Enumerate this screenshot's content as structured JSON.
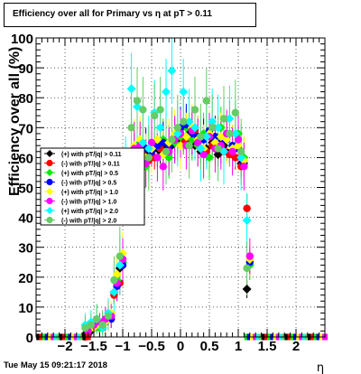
{
  "page": {
    "timestamp": "Tue May 15 09:21:17 2018"
  },
  "chart_data": {
    "type": "scatter",
    "title": "Efficiency over all for Primary vs   η at pT > 0.11",
    "xlabel": "η",
    "ylabel": "Efficiency over all (%)",
    "xlim": [
      -2.5,
      2.5
    ],
    "ylim": [
      0,
      100
    ],
    "x_ticks": [
      -2,
      -1.5,
      -1,
      -0.5,
      0,
      0.5,
      1,
      1.5,
      2
    ],
    "x_tick_labels": [
      "−2",
      "−1.5",
      "−1",
      "−0.5",
      "0",
      "0.5",
      "1",
      "1.5",
      "2"
    ],
    "y_ticks": [
      0,
      10,
      20,
      30,
      40,
      50,
      60,
      70,
      80,
      90,
      100
    ],
    "y_tick_labels": [
      "0",
      "10",
      "20",
      "30",
      "40",
      "50",
      "60",
      "70",
      "80",
      "90",
      "100"
    ],
    "grid": true,
    "legend_position": "left-middle",
    "colors": {
      "frame": "#000000",
      "grid": "#000000"
    },
    "series": [
      {
        "name": "(+) with pT/|q| > 0.11",
        "color": "#000000",
        "x": [
          -1.65,
          -1.55,
          -1.45,
          -1.35,
          -1.25,
          -1.15,
          -1.05,
          -0.95,
          -0.85,
          -0.75,
          -0.65,
          -0.55,
          -0.45,
          -0.35,
          -0.25,
          -0.15,
          -0.05,
          0.05,
          0.15,
          0.25,
          0.35,
          0.45,
          0.55,
          0.65,
          0.75,
          0.85,
          0.95,
          1.05,
          1.15
        ],
        "y": [
          1,
          2,
          4,
          3,
          6,
          15,
          23,
          45,
          58,
          60,
          62,
          61,
          63,
          62,
          63,
          64,
          65,
          66,
          68,
          64,
          62,
          63,
          65,
          61,
          64,
          62,
          63,
          58,
          16
        ],
        "err": [
          1,
          1,
          2,
          2,
          2,
          3,
          4,
          5,
          5,
          4,
          4,
          4,
          4,
          4,
          4,
          4,
          4,
          4,
          4,
          4,
          4,
          4,
          4,
          4,
          4,
          4,
          4,
          4,
          3
        ]
      },
      {
        "name": "(-) with pT/|q| > 0.11",
        "color": "#ff0000",
        "x": [
          -1.65,
          -1.55,
          -1.45,
          -1.35,
          -1.25,
          -1.15,
          -1.05,
          -0.95,
          -0.85,
          -0.75,
          -0.65,
          -0.55,
          -0.45,
          -0.35,
          -0.25,
          -0.15,
          -0.05,
          0.05,
          0.15,
          0.25,
          0.35,
          0.45,
          0.55,
          0.65,
          0.75,
          0.85,
          0.95,
          1.05,
          1.15
        ],
        "y": [
          0,
          3,
          5,
          4,
          6,
          14,
          18,
          44,
          56,
          58,
          61,
          59,
          60,
          63,
          62,
          66,
          67,
          65,
          66,
          69,
          63,
          62,
          64,
          63,
          62,
          61,
          60,
          57,
          43
        ],
        "err": [
          1,
          1,
          2,
          2,
          2,
          3,
          4,
          5,
          5,
          4,
          4,
          4,
          4,
          4,
          4,
          4,
          4,
          4,
          4,
          4,
          4,
          4,
          4,
          4,
          4,
          4,
          4,
          4,
          5
        ]
      },
      {
        "name": "(+) with pT/|q| > 0.5",
        "color": "#00ee00",
        "x": [
          -1.6,
          -1.5,
          -1.4,
          -1.3,
          -1.2,
          -1.1,
          -1.0,
          -0.9,
          -0.8,
          -0.7,
          -0.6,
          -0.5,
          -0.4,
          -0.3,
          -0.2,
          -0.1,
          0.0,
          0.1,
          0.2,
          0.3,
          0.4,
          0.5,
          0.6,
          0.7,
          0.8,
          0.9,
          1.0,
          1.1,
          1.2
        ],
        "y": [
          2,
          4,
          3,
          5,
          7,
          19,
          25,
          50,
          62,
          65,
          57,
          63,
          64,
          66,
          60,
          65,
          67,
          70,
          66,
          64,
          68,
          60,
          65,
          70,
          66,
          64,
          68,
          60,
          24
        ],
        "err": [
          2,
          2,
          3,
          3,
          3,
          5,
          6,
          8,
          8,
          7,
          7,
          7,
          7,
          7,
          7,
          7,
          7,
          7,
          7,
          7,
          7,
          7,
          7,
          7,
          7,
          7,
          7,
          7,
          5
        ]
      },
      {
        "name": "(-) with pT/|q| > 0.5",
        "color": "#0000ff",
        "x": [
          -1.6,
          -1.5,
          -1.4,
          -1.3,
          -1.2,
          -1.1,
          -1.0,
          -0.9,
          -0.8,
          -0.7,
          -0.6,
          -0.5,
          -0.4,
          -0.3,
          -0.2,
          -0.1,
          0.0,
          0.1,
          0.2,
          0.3,
          0.4,
          0.5,
          0.6,
          0.7,
          0.8,
          0.9,
          1.0,
          1.1,
          1.2
        ],
        "y": [
          1,
          3,
          4,
          5,
          6,
          17,
          24,
          46,
          60,
          61,
          63,
          62,
          64,
          65,
          64,
          66,
          70,
          71,
          68,
          67,
          66,
          69,
          67,
          65,
          66,
          64,
          63,
          58,
          25
        ],
        "err": [
          2,
          2,
          3,
          3,
          3,
          5,
          6,
          8,
          8,
          7,
          7,
          7,
          7,
          7,
          7,
          7,
          7,
          7,
          7,
          7,
          7,
          7,
          7,
          7,
          7,
          7,
          7,
          7,
          5
        ]
      },
      {
        "name": "(+) with pT/|q| > 1.0",
        "color": "#ffff00",
        "x": [
          -1.6,
          -1.5,
          -1.4,
          -1.3,
          -1.2,
          -1.1,
          -1.0,
          -0.9,
          -0.8,
          -0.7,
          -0.6,
          -0.5,
          -0.4,
          -0.3,
          -0.2,
          -0.1,
          0.0,
          0.1,
          0.2,
          0.3,
          0.4,
          0.5,
          0.6,
          0.7,
          0.8,
          0.9,
          1.0,
          1.1,
          1.2
        ],
        "y": [
          2,
          3,
          4,
          5,
          8,
          21,
          28,
          52,
          64,
          66,
          60,
          63,
          66,
          61,
          65,
          68,
          64,
          67,
          70,
          66,
          63,
          68,
          65,
          67,
          66,
          63,
          64,
          59,
          26
        ],
        "err": [
          3,
          3,
          3,
          4,
          4,
          6,
          7,
          9,
          9,
          8,
          8,
          8,
          8,
          8,
          8,
          8,
          8,
          8,
          8,
          8,
          8,
          8,
          8,
          8,
          8,
          8,
          8,
          8,
          6
        ]
      },
      {
        "name": "(-) with pT/|q| > 1.0",
        "color": "#ff00ff",
        "x": [
          -1.6,
          -1.5,
          -1.4,
          -1.3,
          -1.2,
          -1.1,
          -1.0,
          -0.9,
          -0.8,
          -0.7,
          -0.6,
          -0.5,
          -0.4,
          -0.3,
          -0.2,
          -0.1,
          0.0,
          0.1,
          0.2,
          0.3,
          0.4,
          0.5,
          0.6,
          0.7,
          0.8,
          0.9,
          1.0,
          1.1,
          1.2
        ],
        "y": [
          2,
          4,
          5,
          6,
          7,
          18,
          26,
          50,
          63,
          64,
          58,
          65,
          60,
          57,
          62,
          66,
          68,
          64,
          69,
          65,
          61,
          67,
          63,
          64,
          68,
          62,
          66,
          57,
          27
        ],
        "err": [
          3,
          3,
          3,
          4,
          4,
          6,
          7,
          9,
          9,
          8,
          8,
          8,
          8,
          8,
          8,
          8,
          8,
          8,
          8,
          8,
          8,
          8,
          8,
          8,
          8,
          8,
          8,
          8,
          6
        ]
      },
      {
        "name": "(+) with pT/|q| > 2.0",
        "color": "#00ffff",
        "x": [
          -1.65,
          -1.55,
          -1.45,
          -1.35,
          -1.25,
          -1.15,
          -1.05,
          -0.95,
          -0.85,
          -0.75,
          -0.65,
          -0.55,
          -0.45,
          -0.35,
          -0.25,
          -0.15,
          -0.05,
          0.05,
          0.15,
          0.25,
          0.35,
          0.45,
          0.55,
          0.65,
          0.75,
          0.85,
          0.95,
          1.05,
          1.15
        ],
        "y": [
          4,
          5,
          6,
          3,
          8,
          15,
          24,
          55,
          83,
          77,
          65,
          63,
          75,
          70,
          82,
          89,
          68,
          82,
          72,
          70,
          63,
          67,
          72,
          70,
          62,
          73,
          68,
          60,
          39
        ],
        "err": [
          4,
          4,
          5,
          5,
          5,
          8,
          10,
          12,
          12,
          11,
          11,
          11,
          11,
          11,
          11,
          11,
          11,
          11,
          11,
          11,
          11,
          11,
          11,
          11,
          11,
          11,
          11,
          11,
          9
        ]
      },
      {
        "name": "(-) with pT/|q| > 2.0",
        "color": "#66cc66",
        "x": [
          -1.65,
          -1.55,
          -1.45,
          -1.35,
          -1.25,
          -1.15,
          -1.05,
          -0.95,
          -0.85,
          -0.75,
          -0.65,
          -0.55,
          -0.45,
          -0.35,
          -0.25,
          -0.15,
          -0.05,
          0.05,
          0.15,
          0.25,
          0.35,
          0.45,
          0.55,
          0.65,
          0.75,
          0.85,
          0.95,
          1.05,
          1.15
        ],
        "y": [
          3,
          4,
          6,
          4,
          7,
          19,
          27,
          50,
          70,
          79,
          76,
          60,
          74,
          76,
          62,
          66,
          70,
          72,
          64,
          76,
          67,
          79,
          70,
          63,
          73,
          68,
          75,
          62,
          23
        ],
        "err": [
          4,
          4,
          5,
          5,
          5,
          8,
          10,
          12,
          12,
          11,
          11,
          11,
          11,
          11,
          11,
          11,
          11,
          11,
          11,
          11,
          11,
          11,
          11,
          11,
          11,
          11,
          11,
          11,
          9
        ]
      }
    ]
  }
}
